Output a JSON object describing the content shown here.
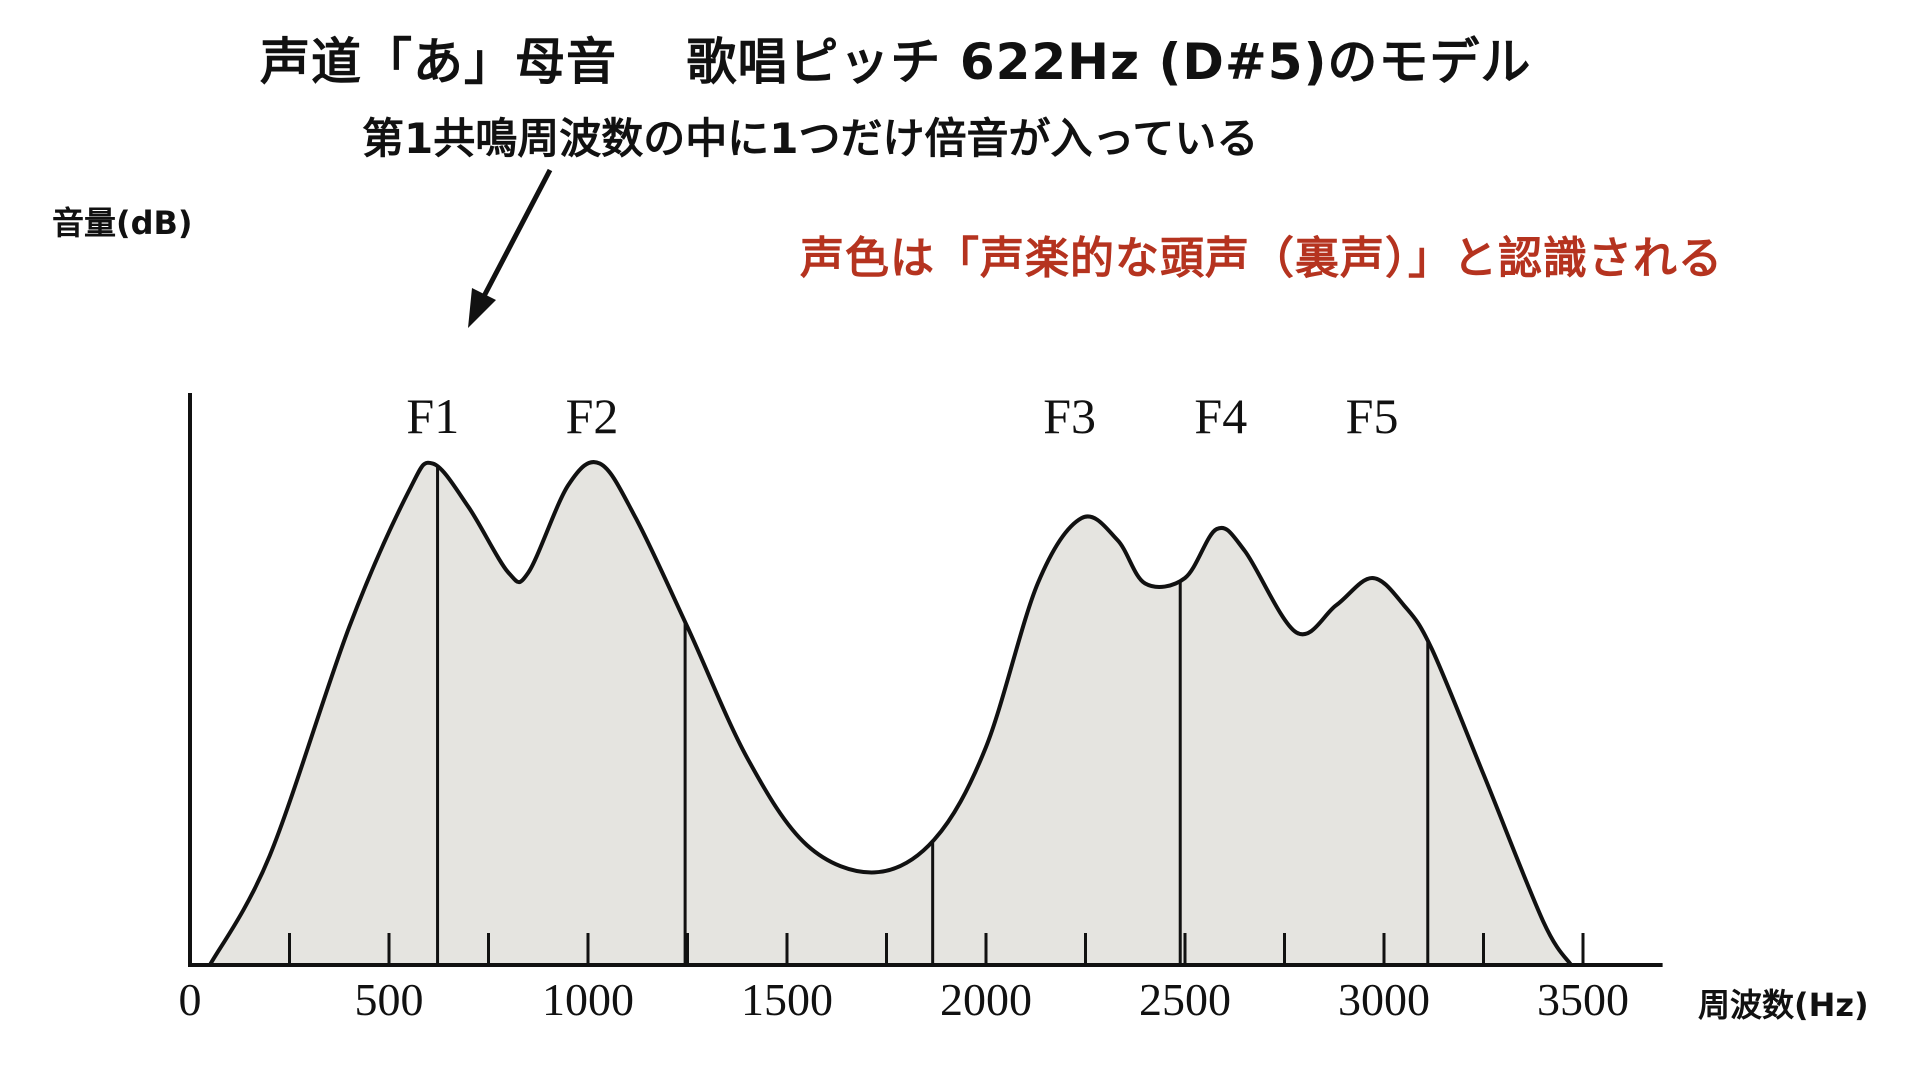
{
  "title": "声道「あ」母音　 歌唱ピッチ 622Hz (D#5)のモデル",
  "subtitle": "第1共鳴周波数の中に1つだけ倍音が入っている",
  "note": {
    "text": "声色は「声楽的な頭声（裏声）」と認識される",
    "color": "#b5331f"
  },
  "colors": {
    "fill": "#e5e4e0",
    "line": "#111111"
  },
  "chart_data": {
    "type": "area",
    "title": "声道「あ」母音　 歌唱ピッチ 622Hz (D#5)のモデル",
    "xlabel": "周波数(Hz)",
    "ylabel": "音量(dB)",
    "xlim": [
      0,
      3700
    ],
    "ylim": [
      0,
      100
    ],
    "x_ticks": [
      0,
      500,
      1000,
      1500,
      2000,
      2500,
      3000,
      3500
    ],
    "minor_ticks": [
      250,
      750,
      1250,
      1750,
      2250,
      2750,
      3250
    ],
    "grid": false,
    "fundamental_hz": 622,
    "harmonics_hz": [
      622,
      1244,
      1866,
      2488,
      3110
    ],
    "formants": [
      {
        "label": "F1",
        "x": 600
      },
      {
        "label": "F2",
        "x": 1000
      },
      {
        "label": "F3",
        "x": 2200
      },
      {
        "label": "F4",
        "x": 2580
      },
      {
        "label": "F5",
        "x": 2960
      }
    ],
    "envelope": [
      {
        "x": 50,
        "y": 0
      },
      {
        "x": 200,
        "y": 20
      },
      {
        "x": 400,
        "y": 62
      },
      {
        "x": 550,
        "y": 87
      },
      {
        "x": 610,
        "y": 92
      },
      {
        "x": 700,
        "y": 84
      },
      {
        "x": 800,
        "y": 72
      },
      {
        "x": 850,
        "y": 72
      },
      {
        "x": 950,
        "y": 88
      },
      {
        "x": 1030,
        "y": 92
      },
      {
        "x": 1120,
        "y": 82
      },
      {
        "x": 1250,
        "y": 62
      },
      {
        "x": 1400,
        "y": 38
      },
      {
        "x": 1550,
        "y": 22
      },
      {
        "x": 1720,
        "y": 17
      },
      {
        "x": 1870,
        "y": 23
      },
      {
        "x": 2000,
        "y": 40
      },
      {
        "x": 2130,
        "y": 70
      },
      {
        "x": 2240,
        "y": 82
      },
      {
        "x": 2330,
        "y": 78
      },
      {
        "x": 2400,
        "y": 70
      },
      {
        "x": 2500,
        "y": 71
      },
      {
        "x": 2580,
        "y": 80
      },
      {
        "x": 2650,
        "y": 76
      },
      {
        "x": 2780,
        "y": 61
      },
      {
        "x": 2880,
        "y": 66
      },
      {
        "x": 2970,
        "y": 71
      },
      {
        "x": 3050,
        "y": 66
      },
      {
        "x": 3120,
        "y": 58
      },
      {
        "x": 3250,
        "y": 35
      },
      {
        "x": 3400,
        "y": 8
      },
      {
        "x": 3470,
        "y": 0
      }
    ]
  }
}
